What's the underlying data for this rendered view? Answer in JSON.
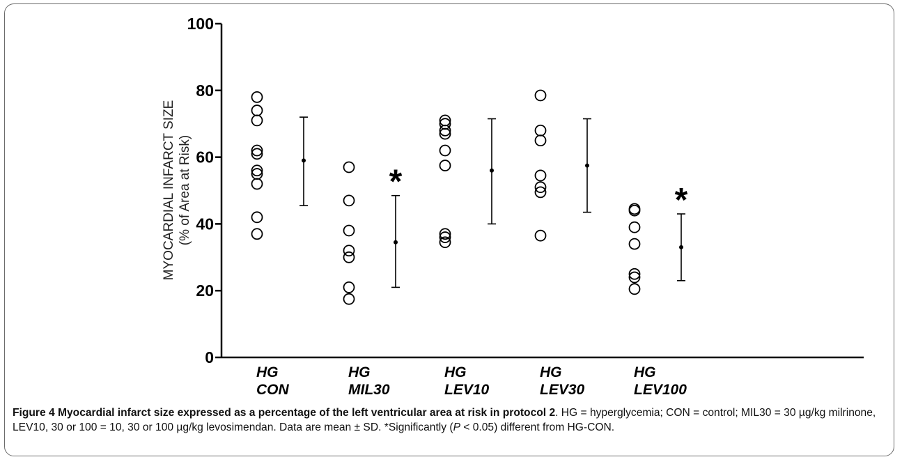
{
  "chart_data": {
    "type": "scatter",
    "ylabel_line1": "MYOCARDIAL INFARCT SIZE",
    "ylabel_line2": "(% of Area at Risk)",
    "ylim": [
      0,
      100
    ],
    "yticks": [
      "0",
      "20",
      "40",
      "60",
      "80",
      "100"
    ],
    "groups": [
      {
        "line1": "HG",
        "line2": "CON",
        "points": [
          78,
          74,
          71,
          62,
          61,
          56,
          55,
          52,
          42,
          37
        ],
        "mean": 59,
        "sd_low": 45.5,
        "sd_high": 72,
        "significant": false
      },
      {
        "line1": "HG",
        "line2": "MIL30",
        "points": [
          57,
          47,
          38,
          32,
          30,
          21,
          17.5
        ],
        "mean": 34.5,
        "sd_low": 21,
        "sd_high": 48.5,
        "significant": true
      },
      {
        "line1": "HG",
        "line2": "LEV10",
        "points": [
          71,
          70,
          68,
          67,
          62,
          57.5,
          37,
          36,
          34.5
        ],
        "mean": 56,
        "sd_low": 40,
        "sd_high": 71.5,
        "significant": false
      },
      {
        "line1": "HG",
        "line2": "LEV30",
        "points": [
          78.5,
          68,
          65,
          54.5,
          51,
          49.5,
          36.5
        ],
        "mean": 57.5,
        "sd_low": 43.5,
        "sd_high": 71.5,
        "significant": false
      },
      {
        "line1": "HG",
        "line2": "LEV100",
        "points": [
          44.5,
          44,
          39,
          34,
          25,
          24,
          20.5
        ],
        "mean": 33,
        "sd_low": 23,
        "sd_high": 43,
        "significant": true
      }
    ],
    "significance_marker": "*",
    "marker_style": "open-circle",
    "grid": false,
    "colors": {
      "marker": "#000000",
      "axis": "#000000"
    }
  },
  "caption": {
    "figure_label": "Figure 4",
    "title": "Myocardial infarct size expressed as a percentage of the left ventricular area at risk in protocol 2",
    "text_part1": ". HG = hyperglycemia; CON = control; MIL30 = 30 µg/kg milrinone, LEV10, 30 or 100 = 10, 30 or 100 µg/kg levosimendan. Data are mean ± SD. *Significantly (",
    "p_italic": "P",
    "text_part2": " < 0.05) different from HG-CON."
  }
}
